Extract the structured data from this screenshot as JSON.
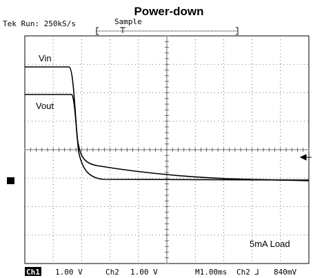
{
  "header": {
    "title": "Power-down",
    "status": "Tek Run: 250kS/s",
    "mode": "Sample"
  },
  "labels": {
    "vin": "Vin",
    "vout": "Vout",
    "load": "5mA Load"
  },
  "footer": [
    "Ch1",
    "1.00 V",
    "Ch2",
    "1.00 V",
    "M1.00ms",
    "Ch2 ⅃",
    "840mV"
  ]
}
